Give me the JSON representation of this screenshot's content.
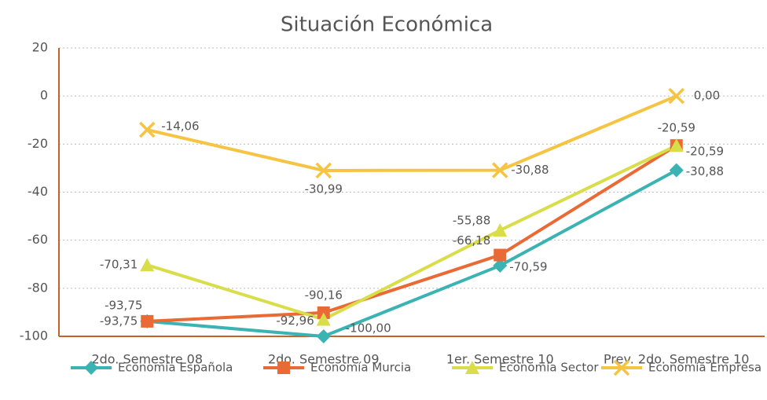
{
  "chart_data": {
    "type": "line",
    "title": "Situación Económica",
    "categories": [
      "2do. Semestre 08",
      "2do. Semestre 09",
      "1er. Semestre 10",
      "Prev. 2do. Semestre 10"
    ],
    "series": [
      {
        "name": "Economía Española",
        "color": "#3bb3b3",
        "marker": "diamond",
        "values": [
          -93.75,
          -100.0,
          -70.59,
          -30.88
        ],
        "value_labels": [
          "-93,75",
          "-100,00",
          "-70,59",
          "-30,88"
        ]
      },
      {
        "name": "Economía Murcia",
        "color": "#ea6a35",
        "marker": "square",
        "values": [
          -93.75,
          -90.16,
          -66.18,
          -20.59
        ],
        "value_labels": [
          "-93,75",
          "-90,16",
          "-66,18",
          "-20,59"
        ]
      },
      {
        "name": "Economía Sector",
        "color": "#d9dd4a",
        "marker": "triangle",
        "values": [
          -70.31,
          -92.96,
          -55.88,
          -20.59
        ],
        "value_labels": [
          "-70,31",
          "-92,96",
          "-55,88",
          "-20,59"
        ]
      },
      {
        "name": "Economía Empresa",
        "color": "#f6c443",
        "marker": "x",
        "values": [
          -14.06,
          -30.99,
          -30.88,
          0.0
        ],
        "value_labels": [
          "-14,06",
          "-30,99",
          "-30,88",
          "0,00"
        ]
      }
    ],
    "ylim": [
      -100,
      20
    ],
    "yticks": [
      -100,
      -80,
      -60,
      -40,
      -20,
      0,
      20
    ],
    "grid": true
  }
}
